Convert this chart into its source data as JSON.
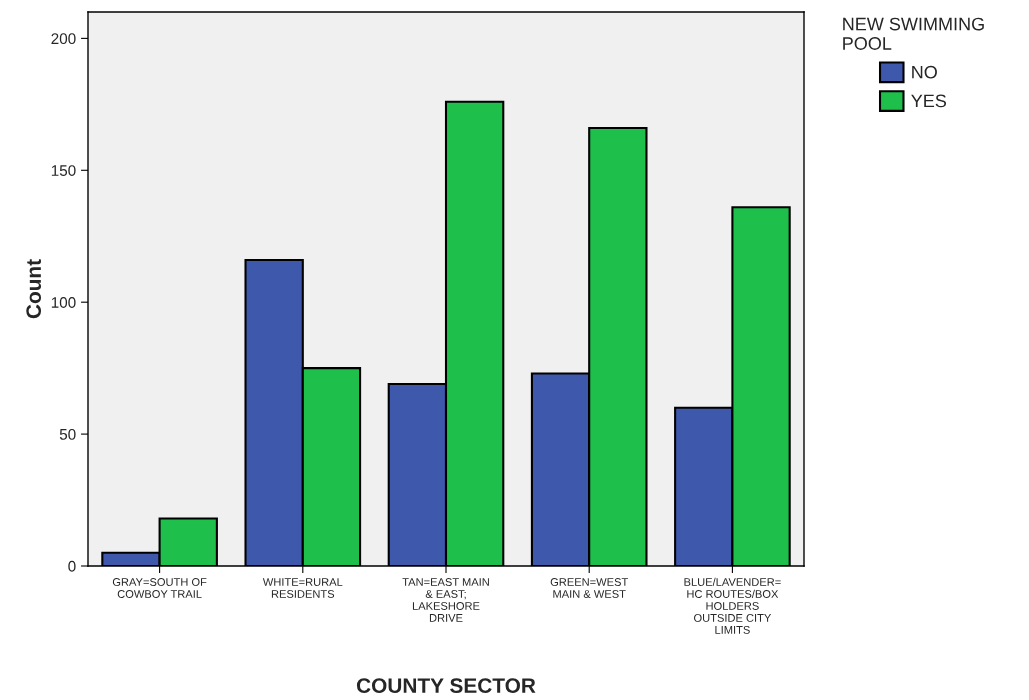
{
  "chart_data": {
    "type": "bar",
    "xlabel": "COUNTY SECTOR",
    "ylabel": "Count",
    "legend_title": "NEW SWIMMING\nPOOL",
    "categories": [
      "GRAY=SOUTH OF\nCOWBOY TRAIL",
      "WHITE=RURAL\nRESIDENTS",
      "TAN=EAST MAIN\n& EAST;\nLAKESHORE\nDRIVE",
      "GREEN=WEST\nMAIN & WEST",
      "BLUE/LAVENDER=\nHC ROUTES/BOX\nHOLDERS\nOUTSIDE CITY\nLIMITS"
    ],
    "series": [
      {
        "name": "NO",
        "color": "#3e58ac",
        "values": [
          5,
          116,
          69,
          73,
          60
        ]
      },
      {
        "name": "YES",
        "color": "#1fbf4c",
        "values": [
          18,
          75,
          176,
          166,
          136
        ]
      }
    ],
    "ylim": [
      0,
      210
    ],
    "yticks": [
      0,
      50,
      100,
      150,
      200
    ],
    "grid": false,
    "legend": "top right"
  }
}
